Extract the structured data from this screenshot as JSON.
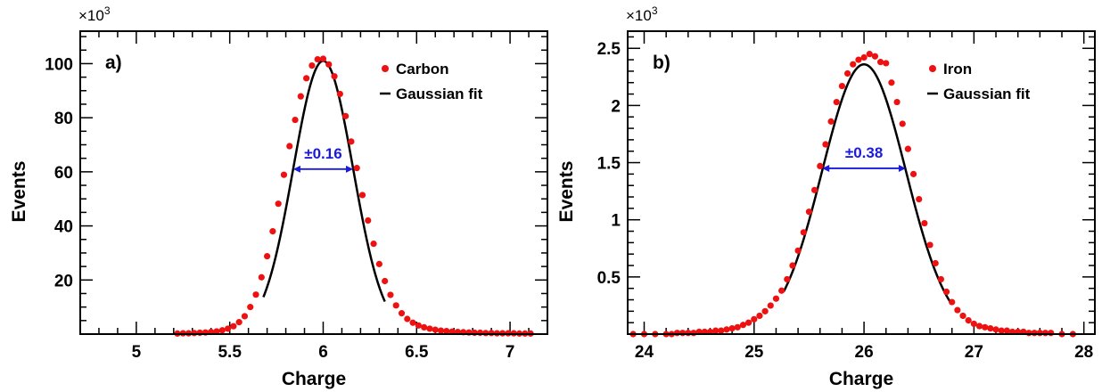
{
  "colors": {
    "data": "#ee1111",
    "fit": "#000000",
    "width": "#1a1adb"
  },
  "chart_data": [
    {
      "type": "scatter",
      "panel_label": "a)",
      "xlabel": "Charge",
      "ylabel": "Events",
      "y_multiplier": "×10",
      "y_multiplier_exp": "3",
      "xlim": [
        4.7,
        7.2
      ],
      "ylim": [
        0,
        112
      ],
      "xticks": [
        5,
        5.5,
        6,
        6.5,
        7
      ],
      "xtick_labels": [
        "5",
        "5.5",
        "6",
        "6.5",
        "7"
      ],
      "x_minor_step": 0.1,
      "yticks": [
        20,
        40,
        60,
        80,
        100
      ],
      "ytick_labels": [
        "20",
        "40",
        "60",
        "80",
        "100"
      ],
      "y_minor_step": 5,
      "series": [
        {
          "name": "Carbon",
          "kind": "points",
          "x": [
            5.22,
            5.25,
            5.28,
            5.31,
            5.34,
            5.37,
            5.4,
            5.43,
            5.46,
            5.49,
            5.52,
            5.55,
            5.58,
            5.61,
            5.64,
            5.67,
            5.7,
            5.73,
            5.76,
            5.79,
            5.82,
            5.85,
            5.88,
            5.91,
            5.94,
            5.97,
            6.0,
            6.03,
            6.06,
            6.09,
            6.12,
            6.15,
            6.18,
            6.21,
            6.24,
            6.27,
            6.3,
            6.33,
            6.36,
            6.39,
            6.42,
            6.45,
            6.48,
            6.51,
            6.54,
            6.57,
            6.6,
            6.63,
            6.66,
            6.69,
            6.72,
            6.75,
            6.78,
            6.81,
            6.84,
            6.87,
            6.9,
            6.93,
            6.96,
            6.99,
            7.02,
            7.05,
            7.08,
            7.11
          ],
          "y": [
            0.2,
            0.3,
            0.3,
            0.4,
            0.5,
            0.6,
            0.8,
            1.0,
            1.4,
            2.0,
            2.9,
            4.4,
            6.6,
            10.0,
            14.6,
            21.0,
            28.8,
            38.0,
            48.2,
            58.9,
            69.5,
            79.2,
            87.9,
            94.6,
            99.3,
            101.6,
            101.8,
            99.7,
            95.3,
            88.8,
            80.6,
            71.2,
            61.4,
            51.4,
            42.0,
            33.4,
            25.9,
            19.6,
            14.5,
            10.6,
            7.7,
            5.6,
            4.2,
            3.2,
            2.5,
            2.0,
            1.6,
            1.3,
            1.1,
            0.9,
            0.8,
            0.7,
            0.6,
            0.5,
            0.5,
            0.4,
            0.4,
            0.3,
            0.3,
            0.3,
            0.3,
            0.2,
            0.2,
            0.2
          ]
        },
        {
          "name": "Gaussian fit",
          "kind": "line",
          "mean": 6.0,
          "sigma": 0.16,
          "amplitude": 101,
          "x_range": [
            5.68,
            6.33
          ]
        }
      ],
      "width_annotation": {
        "label": "±0.16",
        "x_from": 5.84,
        "x_to": 6.16,
        "y": 61
      }
    },
    {
      "type": "scatter",
      "panel_label": "b)",
      "xlabel": "Charge",
      "ylabel": "Events",
      "y_multiplier": "×10",
      "y_multiplier_exp": "3",
      "xlim": [
        23.85,
        28.1
      ],
      "ylim": [
        0,
        2.65
      ],
      "xticks": [
        24,
        25,
        26,
        27,
        28
      ],
      "xtick_labels": [
        "24",
        "25",
        "26",
        "27",
        "28"
      ],
      "x_minor_step": 0.2,
      "yticks": [
        0.5,
        1,
        1.5,
        2,
        2.5
      ],
      "ytick_labels": [
        "0.5",
        "1",
        "1.5",
        "2",
        "2.5"
      ],
      "y_minor_step": 0.1,
      "series": [
        {
          "name": "Iron",
          "kind": "points",
          "x": [
            23.9,
            24.0,
            24.1,
            24.2,
            24.25,
            24.3,
            24.35,
            24.4,
            24.45,
            24.5,
            24.55,
            24.6,
            24.65,
            24.7,
            24.75,
            24.8,
            24.85,
            24.9,
            24.95,
            25.0,
            25.05,
            25.1,
            25.15,
            25.2,
            25.25,
            25.3,
            25.35,
            25.4,
            25.45,
            25.5,
            25.55,
            25.6,
            25.65,
            25.7,
            25.75,
            25.8,
            25.85,
            25.9,
            25.95,
            26.0,
            26.05,
            26.1,
            26.15,
            26.2,
            26.25,
            26.3,
            26.35,
            26.4,
            26.45,
            26.5,
            26.55,
            26.6,
            26.65,
            26.7,
            26.75,
            26.8,
            26.85,
            26.9,
            26.95,
            27.0,
            27.05,
            27.1,
            27.15,
            27.2,
            27.25,
            27.3,
            27.35,
            27.4,
            27.45,
            27.5,
            27.55,
            27.6,
            27.65,
            27.7,
            27.8,
            27.9
          ],
          "y": [
            0.0,
            0.0,
            0.0,
            0.0,
            0.0,
            0.01,
            0.01,
            0.01,
            0.01,
            0.02,
            0.02,
            0.02,
            0.03,
            0.03,
            0.04,
            0.05,
            0.06,
            0.08,
            0.1,
            0.13,
            0.16,
            0.2,
            0.25,
            0.31,
            0.38,
            0.48,
            0.6,
            0.73,
            0.89,
            1.07,
            1.26,
            1.47,
            1.66,
            1.86,
            2.03,
            2.17,
            2.28,
            2.36,
            2.4,
            2.42,
            2.45,
            2.43,
            2.38,
            2.37,
            2.2,
            2.03,
            1.84,
            1.62,
            1.4,
            1.18,
            0.97,
            0.78,
            0.62,
            0.48,
            0.37,
            0.28,
            0.21,
            0.16,
            0.12,
            0.09,
            0.07,
            0.06,
            0.05,
            0.04,
            0.03,
            0.03,
            0.02,
            0.02,
            0.02,
            0.01,
            0.01,
            0.01,
            0.01,
            0.01,
            0.0,
            0.0
          ]
        },
        {
          "name": "Gaussian fit",
          "kind": "line",
          "mean": 26.0,
          "sigma": 0.38,
          "amplitude": 2.36,
          "x_range": [
            25.27,
            26.79
          ]
        }
      ],
      "width_annotation": {
        "label": "±0.38",
        "x_from": 25.62,
        "x_to": 26.38,
        "y": 1.45
      }
    }
  ]
}
